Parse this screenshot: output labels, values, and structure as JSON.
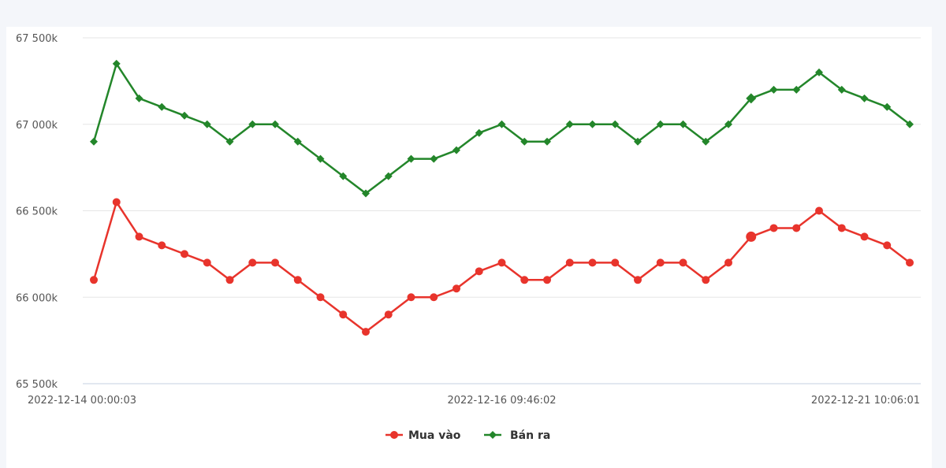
{
  "chart_data": {
    "type": "line",
    "title": "",
    "xlabel": "",
    "ylabel": "",
    "ylim": [
      65500,
      67500
    ],
    "y_ticks": [
      {
        "value": 65500,
        "label": "65 500k"
      },
      {
        "value": 66000,
        "label": "66 000k"
      },
      {
        "value": 66500,
        "label": "66 500k"
      },
      {
        "value": 67000,
        "label": "67 000k"
      },
      {
        "value": 67500,
        "label": "67 500k"
      }
    ],
    "x_tick_labels": [
      {
        "index": 0,
        "label": "2022-12-14 00:00:03",
        "anchor": "start"
      },
      {
        "index": 18,
        "label": "2022-12-16 09:46:02",
        "anchor": "middle"
      },
      {
        "index": 36,
        "label": "2022-12-21 10:06:01",
        "anchor": "end"
      }
    ],
    "grid": true,
    "legend_position": "bottom-center",
    "series": [
      {
        "name": "Mua vào",
        "color": "#e8342c",
        "marker": "circle",
        "highlight_index": 29,
        "values": [
          66100,
          66550,
          66350,
          66300,
          66250,
          66200,
          66100,
          66200,
          66200,
          66100,
          66000,
          65900,
          65800,
          65900,
          66000,
          66000,
          66050,
          66150,
          66200,
          66100,
          66100,
          66200,
          66200,
          66200,
          66100,
          66200,
          66200,
          66100,
          66200,
          66350,
          66400,
          66400,
          66500,
          66400,
          66350,
          66300,
          66200
        ]
      },
      {
        "name": "Bán ra",
        "color": "#23862a",
        "marker": "diamond",
        "highlight_index": 29,
        "values": [
          66900,
          67350,
          67150,
          67100,
          67050,
          67000,
          66900,
          67000,
          67000,
          66900,
          66800,
          66700,
          66600,
          66700,
          66800,
          66800,
          66850,
          66950,
          67000,
          66900,
          66900,
          67000,
          67000,
          67000,
          66900,
          67000,
          67000,
          66900,
          67000,
          67150,
          67200,
          67200,
          67300,
          67200,
          67150,
          67100,
          67000
        ]
      }
    ]
  }
}
